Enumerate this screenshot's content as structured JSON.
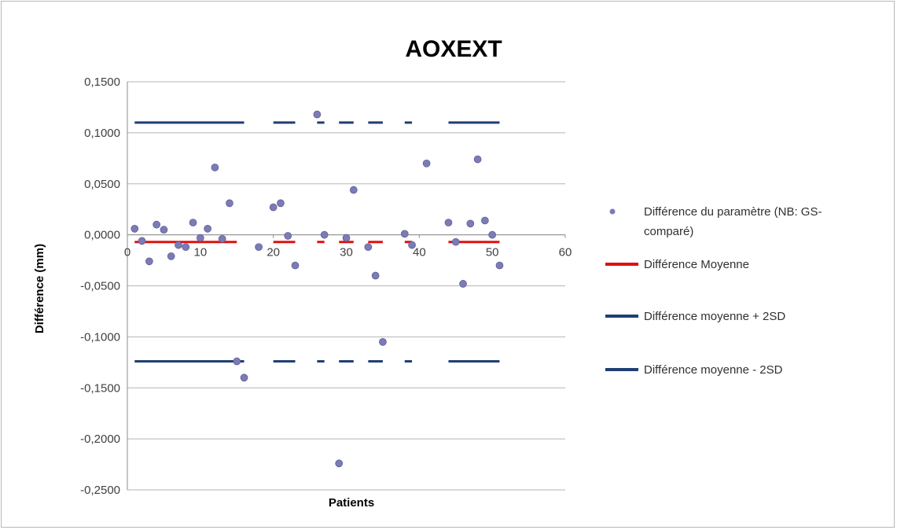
{
  "chart_data": {
    "type": "scatter",
    "title": "AOXEXT",
    "xlabel": "Patients",
    "ylabel": "Différence (mm)",
    "xlim": [
      0,
      60
    ],
    "ylim": [
      -0.25,
      0.15
    ],
    "x_ticks": [
      "0",
      "10",
      "20",
      "30",
      "40",
      "50",
      "60"
    ],
    "y_ticks": [
      "0,1500",
      "0,1000",
      "0,0500",
      "0,0000",
      "-0,0500",
      "-0,1000",
      "-0,1500",
      "-0,2000",
      "-0,2500"
    ],
    "grid": "horizontal",
    "legend_position": "right",
    "series": [
      {
        "name": "Différence du paramètre (NB: GS-comparé)",
        "kind": "scatter",
        "color": "#7b7bb8",
        "x": [
          1,
          2,
          3,
          4,
          5,
          6,
          7,
          8,
          9,
          10,
          11,
          12,
          13,
          14,
          15,
          16,
          18,
          20,
          21,
          22,
          23,
          26,
          27,
          29,
          30,
          31,
          33,
          34,
          35,
          38,
          39,
          41,
          44,
          45,
          46,
          47,
          48,
          49,
          50,
          51
        ],
        "y": [
          0.006,
          -0.006,
          -0.026,
          0.01,
          0.005,
          -0.021,
          -0.01,
          -0.012,
          0.012,
          -0.003,
          0.006,
          0.066,
          -0.004,
          0.031,
          -0.124,
          -0.14,
          -0.012,
          0.027,
          0.031,
          -0.001,
          -0.03,
          0.118,
          0.0,
          -0.224,
          -0.003,
          0.044,
          -0.012,
          -0.04,
          -0.105,
          0.001,
          -0.01,
          0.07,
          0.012,
          -0.007,
          -0.048,
          0.011,
          0.074,
          0.014,
          0.0,
          -0.03
        ]
      },
      {
        "name": "Différence Moyenne",
        "kind": "line",
        "color": "#e01010",
        "value": -0.007,
        "segments": [
          [
            1,
            15
          ],
          [
            20,
            23
          ],
          [
            26,
            27
          ],
          [
            29,
            31
          ],
          [
            33,
            35
          ],
          [
            38,
            39
          ],
          [
            44,
            51
          ]
        ]
      },
      {
        "name": "Différence moyenne + 2SD",
        "kind": "line",
        "color": "#1f3f73",
        "value": 0.11,
        "segments": [
          [
            1,
            16
          ],
          [
            20,
            23
          ],
          [
            26,
            27
          ],
          [
            29,
            31
          ],
          [
            33,
            35
          ],
          [
            38,
            39
          ],
          [
            44,
            51
          ]
        ]
      },
      {
        "name": "Différence moyenne - 2SD",
        "kind": "line",
        "color": "#1f3f73",
        "value": -0.124,
        "segments": [
          [
            1,
            16
          ],
          [
            20,
            23
          ],
          [
            26,
            27
          ],
          [
            29,
            31
          ],
          [
            33,
            35
          ],
          [
            38,
            39
          ],
          [
            44,
            51
          ]
        ]
      }
    ],
    "legend": {
      "scatter_label_line1": "Différence du paramètre (NB: GS-",
      "scatter_label_line2": "comparé)",
      "mean_label": "Différence Moyenne",
      "plus2sd_label": "Différence moyenne + 2SD",
      "minus2sd_label": "Différence moyenne - 2SD"
    }
  }
}
